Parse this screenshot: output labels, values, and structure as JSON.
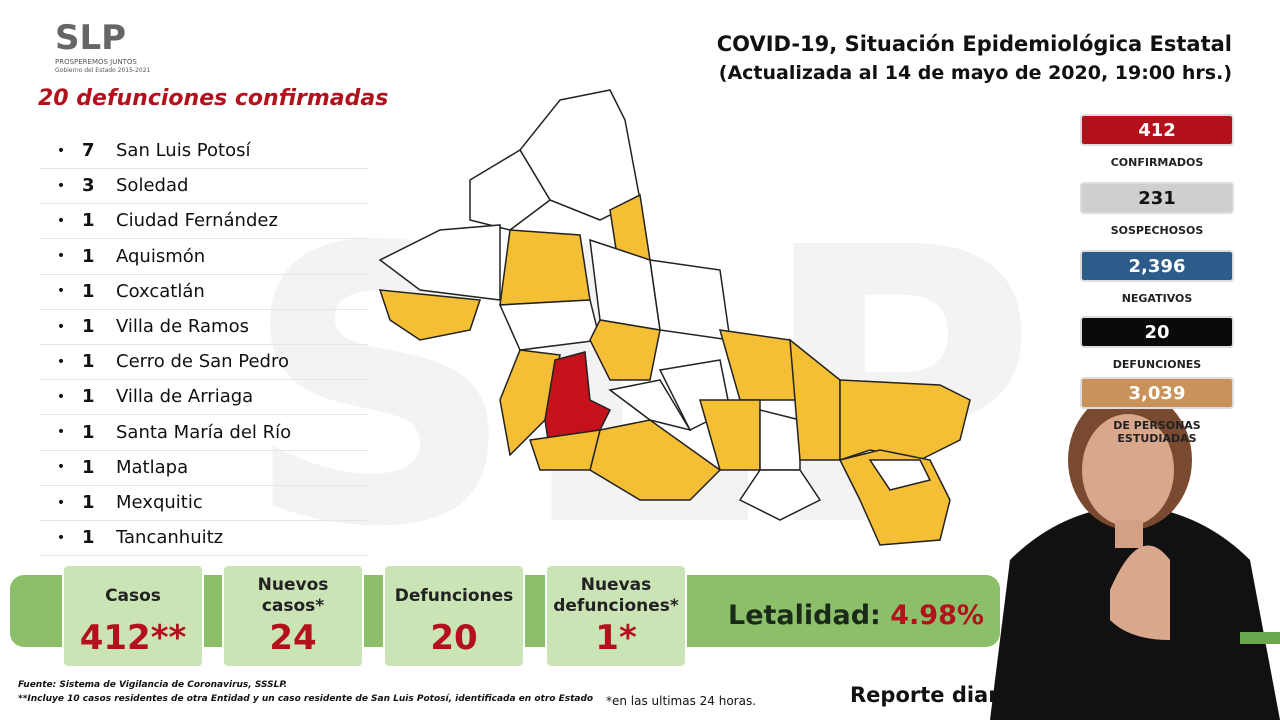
{
  "logo": {
    "name": "SLP",
    "tagline": "PROSPEREMOS JUNTOS",
    "subtitle": "Gobierno del Estado 2015-2021"
  },
  "header": {
    "title": "COVID-19, Situación Epidemiológica Estatal",
    "subtitle": "(Actualizada al 14 de mayo de 2020, 19:00 hrs.)"
  },
  "deaths_list": {
    "title": "20 defunciones confirmadas",
    "rows": [
      {
        "count": 7,
        "place": "San Luis Potosí"
      },
      {
        "count": 3,
        "place": "Soledad"
      },
      {
        "count": 1,
        "place": "Ciudad Fernández"
      },
      {
        "count": 1,
        "place": "Aquismón"
      },
      {
        "count": 1,
        "place": "Coxcatlán"
      },
      {
        "count": 1,
        "place": "Villa de Ramos"
      },
      {
        "count": 1,
        "place": "Cerro de San Pedro"
      },
      {
        "count": 1,
        "place": "Villa de Arriaga"
      },
      {
        "count": 1,
        "place": "Santa María del Río"
      },
      {
        "count": 1,
        "place": "Matlapa"
      },
      {
        "count": 1,
        "place": "Mexquitic"
      },
      {
        "count": 1,
        "place": "Tancanhuitz"
      }
    ]
  },
  "stats": [
    {
      "value": 412,
      "label": "CONFIRMADOS",
      "color": "#b3121c",
      "text_color": "#ffffff"
    },
    {
      "value": 231,
      "label": "SOSPECHOSOS",
      "color": "#cfcfcf",
      "text_color": "#111111"
    },
    {
      "value": "2,396",
      "label": "NEGATIVOS",
      "color": "#2d5b8a",
      "text_color": "#ffffff"
    },
    {
      "value": 20,
      "label": "DEFUNCIONES",
      "color": "#0a0a0a",
      "text_color": "#ffffff"
    },
    {
      "value": "3,039",
      "label": "DE PERSONAS ESTUDIADAS",
      "color": "#c8925a",
      "text_color": "#ffffff"
    }
  ],
  "summary": [
    {
      "label": "Casos",
      "value": "412**"
    },
    {
      "label": "Nuevos casos*",
      "value": 24
    },
    {
      "label": "Defunciones",
      "value": 20
    },
    {
      "label": "Nuevas defunciones*",
      "value": "1*"
    }
  ],
  "lethality": {
    "label": "Letalidad:",
    "value": "4.98%"
  },
  "footer": {
    "source": "Fuente: Sistema de Vigilancia de Coronavirus, SSSLP.",
    "note": "**Incluye 10 casos residentes de otra Entidad y un caso residente de San Luis Potosí, identificada en otro Estado",
    "asterisk": "*en las ultimas 24 horas.",
    "report": "Reporte diario"
  }
}
